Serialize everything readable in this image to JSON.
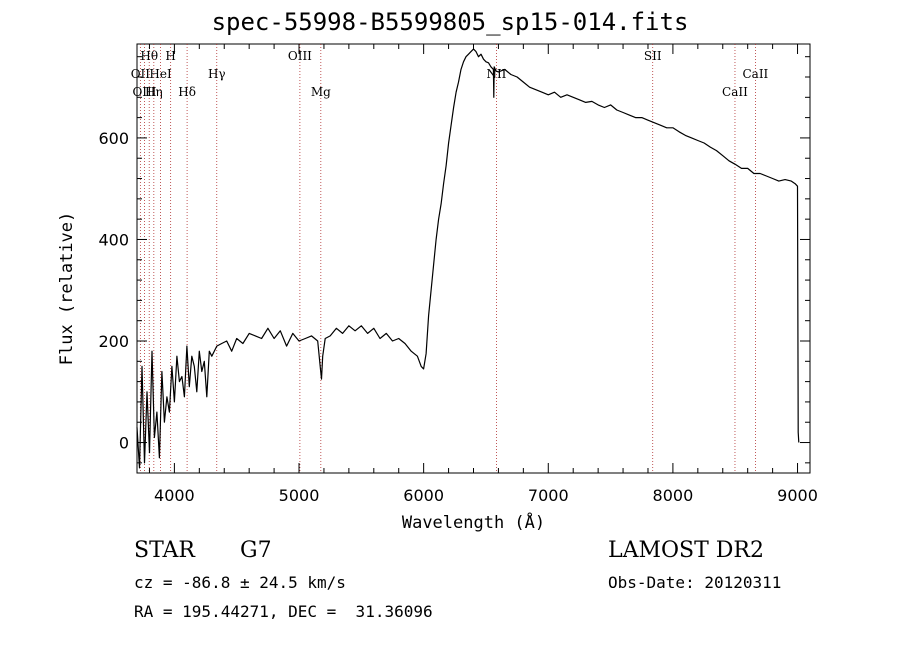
{
  "chart_data": {
    "type": "line",
    "title": "spec-55998-B5599805_sp15-014.fits",
    "xlabel": "Wavelength (Å)",
    "ylabel": "Flux (relative)",
    "xlim": [
      3700,
      9100
    ],
    "ylim": [
      -60,
      785
    ],
    "x_ticks": [
      4000,
      5000,
      6000,
      7000,
      8000,
      9000
    ],
    "y_ticks": [
      0,
      200,
      400,
      600
    ],
    "series": [
      {
        "name": "flux",
        "x": [
          3700,
          3720,
          3740,
          3760,
          3780,
          3800,
          3820,
          3840,
          3860,
          3880,
          3900,
          3920,
          3940,
          3960,
          3980,
          4000,
          4020,
          4040,
          4060,
          4080,
          4100,
          4120,
          4140,
          4160,
          4180,
          4200,
          4220,
          4240,
          4260,
          4280,
          4300,
          4340,
          4380,
          4420,
          4460,
          4500,
          4550,
          4600,
          4650,
          4700,
          4750,
          4800,
          4850,
          4900,
          4950,
          5000,
          5050,
          5100,
          5150,
          5170,
          5180,
          5190,
          5210,
          5250,
          5300,
          5350,
          5400,
          5450,
          5500,
          5550,
          5600,
          5650,
          5700,
          5750,
          5800,
          5850,
          5900,
          5950,
          5980,
          6000,
          6020,
          6040,
          6060,
          6080,
          6100,
          6120,
          6140,
          6160,
          6180,
          6200,
          6220,
          6240,
          6260,
          6280,
          6300,
          6320,
          6340,
          6360,
          6380,
          6400,
          6420,
          6440,
          6460,
          6480,
          6500,
          6520,
          6540,
          6560,
          6563,
          6566,
          6580,
          6600,
          6650,
          6700,
          6750,
          6800,
          6850,
          6900,
          6950,
          7000,
          7050,
          7100,
          7150,
          7200,
          7250,
          7300,
          7350,
          7400,
          7450,
          7500,
          7550,
          7600,
          7650,
          7700,
          7750,
          7800,
          7850,
          7900,
          7950,
          8000,
          8050,
          8100,
          8150,
          8200,
          8250,
          8300,
          8350,
          8400,
          8450,
          8500,
          8550,
          8600,
          8650,
          8700,
          8750,
          8800,
          8850,
          8900,
          8950,
          8980,
          9000,
          9005,
          9010
        ],
        "values": [
          30,
          -50,
          150,
          -40,
          100,
          -20,
          180,
          10,
          60,
          -30,
          140,
          40,
          90,
          60,
          150,
          80,
          170,
          120,
          130,
          90,
          190,
          110,
          170,
          150,
          100,
          180,
          140,
          160,
          90,
          180,
          170,
          190,
          195,
          200,
          180,
          205,
          195,
          215,
          210,
          205,
          225,
          205,
          220,
          190,
          215,
          200,
          205,
          210,
          200,
          150,
          125,
          170,
          205,
          210,
          225,
          215,
          230,
          220,
          230,
          215,
          225,
          205,
          215,
          200,
          205,
          195,
          180,
          170,
          150,
          145,
          175,
          250,
          300,
          350,
          400,
          440,
          470,
          510,
          545,
          590,
          625,
          660,
          690,
          710,
          735,
          750,
          760,
          765,
          770,
          775,
          770,
          760,
          765,
          755,
          750,
          748,
          740,
          735,
          680,
          740,
          732,
          730,
          735,
          725,
          720,
          710,
          700,
          695,
          690,
          685,
          690,
          680,
          685,
          680,
          675,
          670,
          672,
          665,
          660,
          665,
          655,
          650,
          645,
          640,
          640,
          635,
          630,
          625,
          620,
          620,
          612,
          605,
          600,
          595,
          590,
          582,
          575,
          565,
          555,
          548,
          540,
          540,
          530,
          530,
          525,
          520,
          515,
          518,
          515,
          510,
          505,
          20,
          0
        ]
      }
    ],
    "lines": [
      {
        "name": "Hθ",
        "wave": 3798,
        "row": 1
      },
      {
        "name": "OII",
        "wave": 3727,
        "row": 2
      },
      {
        "name": "OIII",
        "wave": 3760,
        "row": 3
      },
      {
        "name": "Hη",
        "wave": 3835,
        "row": 3
      },
      {
        "name": "HeI",
        "wave": 3889,
        "row": 2
      },
      {
        "name": "H",
        "wave": 3970,
        "row": 1
      },
      {
        "name": "Hδ",
        "wave": 4102,
        "row": 3
      },
      {
        "name": "Hγ",
        "wave": 4340,
        "row": 2
      },
      {
        "name": "OIII",
        "wave": 5007,
        "row": 1
      },
      {
        "name": "Mg",
        "wave": 5175,
        "row": 3
      },
      {
        "name": "NII",
        "wave": 6584,
        "row": 2
      },
      {
        "name": "SII",
        "wave": 7838,
        "row": 1
      },
      {
        "name": "CaII",
        "wave": 8498,
        "row": 3
      },
      {
        "name": "CaII",
        "wave": 8662,
        "row": 2
      }
    ]
  },
  "info": {
    "object_class": "STAR",
    "subclass": "G7",
    "survey": "LAMOST DR2",
    "cz": "cz = -86.8 ± 24.5 km/s",
    "obs_date": "Obs-Date: 20120311",
    "radec": "RA = 195.44271, DEC =  31.36096"
  }
}
